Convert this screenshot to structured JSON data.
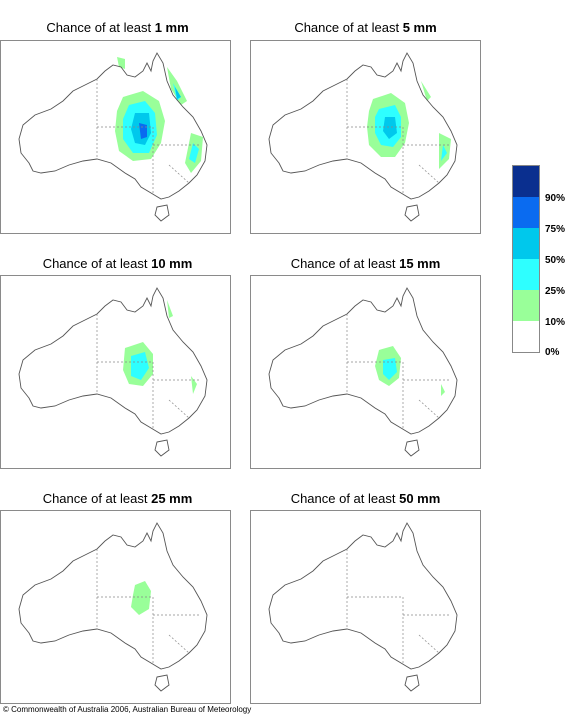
{
  "title_prefix": "Chance of at least ",
  "panels": [
    {
      "amount": "1 mm"
    },
    {
      "amount": "5 mm"
    },
    {
      "amount": "10 mm"
    },
    {
      "amount": "15 mm"
    },
    {
      "amount": "25 mm"
    },
    {
      "amount": "50 mm"
    }
  ],
  "legend": {
    "colors": [
      "#0a2f8f",
      "#0a6bf0",
      "#00c8ec",
      "#2effff",
      "#99ff99",
      "#ffffff"
    ],
    "labels": [
      "90%",
      "75%",
      "50%",
      "25%",
      "10%",
      "0%"
    ]
  },
  "copyright": "© Commonwealth of Australia 2006, Australian Bureau of Meteorology"
}
